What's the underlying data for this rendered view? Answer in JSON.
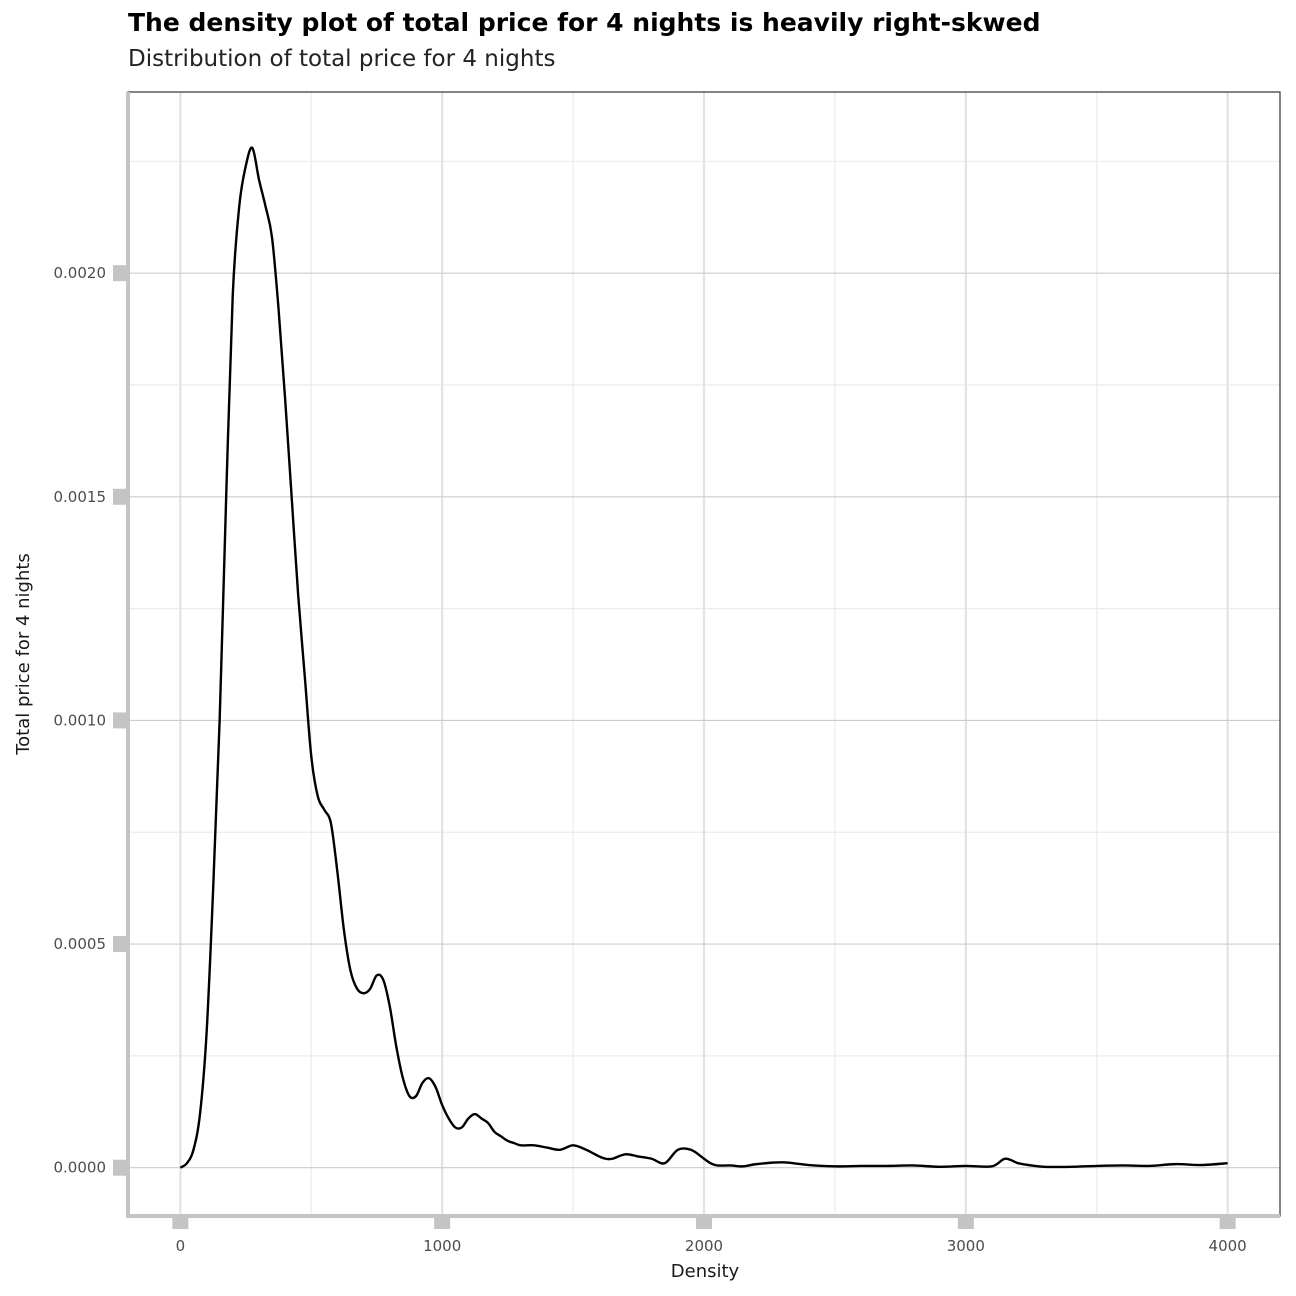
{
  "chart_data": {
    "type": "line",
    "title": "The density plot of total price for 4 nights is heavily right-skwed",
    "subtitle": "Distribution of total price for 4 nights",
    "xlabel": "Density",
    "ylabel": "Total price for 4 nights",
    "xlim": [
      -200,
      4200
    ],
    "ylim": [
      -0.000108,
      0.002405
    ],
    "x_ticks": [
      0,
      1000,
      2000,
      3000,
      4000
    ],
    "x_tick_labels": [
      "0",
      "1000",
      "2000",
      "3000",
      "4000"
    ],
    "y_ticks": [
      0,
      0.0005,
      0.001,
      0.0015,
      0.002
    ],
    "y_tick_labels": [
      "0.0000",
      "0.0005",
      "0.0010",
      "0.0015",
      "0.0020"
    ],
    "grid": true,
    "legend": "none",
    "line_color": "#000000",
    "series": [
      {
        "x": [
          0,
          25,
          50,
          75,
          100,
          125,
          150,
          175,
          200,
          225,
          250,
          275,
          300,
          325,
          350,
          375,
          400,
          425,
          450,
          475,
          500,
          525,
          550,
          575,
          600,
          625,
          650,
          675,
          700,
          725,
          750,
          775,
          800,
          825,
          850,
          875,
          900,
          925,
          950,
          975,
          1000,
          1025,
          1050,
          1075,
          1100,
          1125,
          1150,
          1175,
          1200,
          1225,
          1250,
          1275,
          1300,
          1350,
          1400,
          1450,
          1500,
          1550,
          1600,
          1625,
          1650,
          1700,
          1750,
          1800,
          1850,
          1900,
          1950,
          2000,
          2025,
          2050,
          2100,
          2150,
          2200,
          2300,
          2400,
          2500,
          2600,
          2700,
          2800,
          2900,
          3000,
          3100,
          3150,
          3200,
          3250,
          3300,
          3400,
          3500,
          3600,
          3700,
          3800,
          3900,
          4000
        ],
        "y": [
          0.0,
          1e-05,
          4e-05,
          0.00012,
          0.0003,
          0.00062,
          0.001,
          0.0015,
          0.00195,
          0.00215,
          0.00224,
          0.00228,
          0.00221,
          0.00215,
          0.00208,
          0.00192,
          0.00172,
          0.0015,
          0.00128,
          0.0011,
          0.00092,
          0.00083,
          0.0008,
          0.00077,
          0.00066,
          0.00053,
          0.00044,
          0.0004,
          0.00039,
          0.0004,
          0.00043,
          0.00042,
          0.00036,
          0.00027,
          0.0002,
          0.00016,
          0.00016,
          0.00019,
          0.0002,
          0.00018,
          0.00014,
          0.00011,
          9e-05,
          9e-05,
          0.00011,
          0.00012,
          0.00011,
          0.0001,
          8e-05,
          7e-05,
          6e-05,
          5.5e-05,
          5e-05,
          5e-05,
          4.5e-05,
          4e-05,
          5e-05,
          4e-05,
          2.5e-05,
          2e-05,
          2e-05,
          3e-05,
          2.5e-05,
          2e-05,
          1e-05,
          4e-05,
          4e-05,
          2e-05,
          1e-05,
          5e-06,
          5e-06,
          3e-06,
          8e-06,
          1.2e-05,
          6e-06,
          3e-06,
          4e-06,
          4e-06,
          5e-06,
          2e-06,
          4e-06,
          3e-06,
          2e-05,
          1e-05,
          5e-06,
          2e-06,
          2e-06,
          4e-06,
          5e-06,
          4e-06,
          8e-06,
          6e-06,
          1e-05
        ]
      }
    ]
  }
}
